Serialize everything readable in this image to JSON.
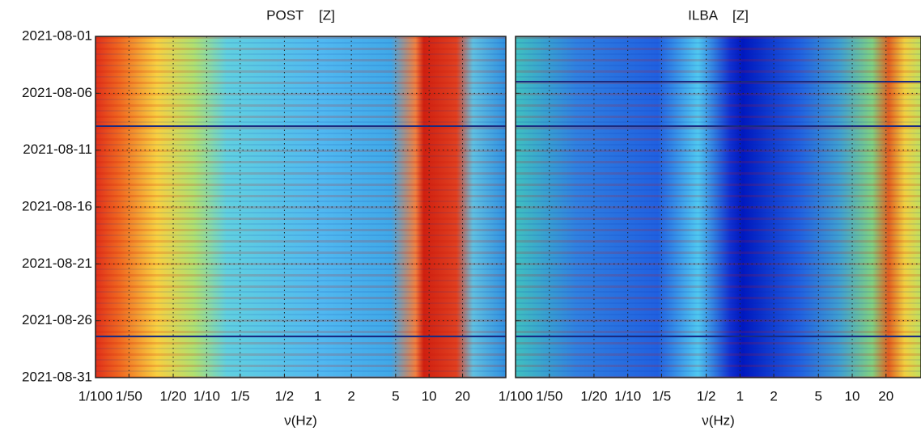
{
  "chart_data": [
    {
      "type": "spectrogram",
      "title": "POST    [Z]",
      "xlabel": "ν(Hz)",
      "xscale": "log",
      "grid": true,
      "xlim": [
        0.01,
        49
      ],
      "xticks": [
        {
          "value": 0.01,
          "label": "1/100"
        },
        {
          "value": 0.02,
          "label": "1/50"
        },
        {
          "value": 0.05,
          "label": "1/20"
        },
        {
          "value": 0.1,
          "label": "1/10"
        },
        {
          "value": 0.2,
          "label": "1/5"
        },
        {
          "value": 0.5,
          "label": "1/2"
        },
        1,
        2,
        5,
        10,
        20
      ],
      "ylim": [
        "2021-08-01",
        "2021-08-31"
      ],
      "yticks": [
        "2021-08-01",
        "2021-08-06",
        "2021-08-11",
        "2021-08-16",
        "2021-08-21",
        "2021-08-26",
        "2021-08-31"
      ]
    },
    {
      "type": "spectrogram",
      "title": "ILBA    [Z]",
      "xlabel": "ν(Hz)",
      "xscale": "log",
      "grid": true,
      "sharey": true,
      "xlim": [
        0.01,
        41
      ],
      "xticks": [
        {
          "value": 0.01,
          "label": "1/100"
        },
        {
          "value": 0.02,
          "label": "1/50"
        },
        {
          "value": 0.05,
          "label": "1/20"
        },
        {
          "value": 0.1,
          "label": "1/10"
        },
        {
          "value": 0.2,
          "label": "1/5"
        },
        {
          "value": 0.5,
          "label": "1/2"
        },
        1,
        2,
        5,
        10,
        20
      ]
    }
  ]
}
